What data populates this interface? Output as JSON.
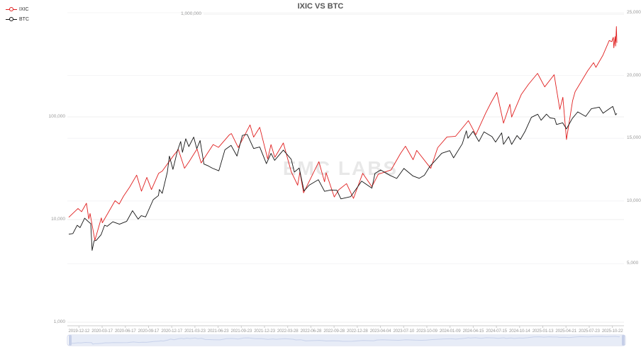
{
  "title": "IXIC VS BTC",
  "watermark": "EMC LABS",
  "legend": {
    "items": [
      {
        "label": "IXIC",
        "color": "#e01f1f"
      },
      {
        "label": "BTC",
        "color": "#141414"
      }
    ]
  },
  "colors": {
    "ixic_line": "#e01f1f",
    "btc_line": "#141414",
    "grid_line": "#efefef",
    "axis_line": "#cccccc",
    "axis_text": "#999999",
    "slider_border": "#d3d9ec",
    "slider_fill": "rgba(135,163,217,0.18)",
    "slider_shadow": "#d7ddef",
    "slider_handle": "#c6cfe8"
  },
  "left_axis": {
    "scale": "log",
    "labels": [
      {
        "text": "1,000,000",
        "value": 1000000
      },
      {
        "text": "100,000",
        "value": 100000
      },
      {
        "text": "10,000",
        "value": 10000
      },
      {
        "text": "1,000",
        "value": 1000
      }
    ]
  },
  "right_axis": {
    "scale": "linear",
    "labels": [
      {
        "text": "25,000",
        "value": 25000
      },
      {
        "text": "20,000",
        "value": 20000
      },
      {
        "text": "15,000",
        "value": 15000
      },
      {
        "text": "10,000",
        "value": 10000
      },
      {
        "text": "5,000",
        "value": 5000
      }
    ]
  },
  "x_axis": {
    "labels": [
      "2019-12-12",
      "2020-03-17",
      "2020-06-17",
      "2020-09-17",
      "2020-12-17",
      "2021-03-23",
      "2021-06-23",
      "2021-09-23",
      "2021-12-23",
      "2022-03-28",
      "2022-06-28",
      "2022-09-28",
      "2022-12-28",
      "2023-04-04",
      "2023-07-10",
      "2023-10-09",
      "2024-01-09",
      "2024-04-15",
      "2024-07-15",
      "2024-10-14",
      "2025-01-13",
      "2025-04-21",
      "2025-07-23",
      "2025-10-22"
    ]
  },
  "chart_data": {
    "type": "line",
    "title": "IXIC VS BTC",
    "x_range": [
      "2019-12-12",
      "2025-10-22"
    ],
    "left_axis_range": [
      1000,
      1000000
    ],
    "right_axis_range": [
      0,
      25000
    ],
    "grid": true,
    "legend_position": "top-left",
    "series": [
      {
        "name": "IXIC",
        "axis": "right",
        "color": "#e01f1f",
        "points": [
          [
            "2019-12-12",
            8700
          ],
          [
            "2020-01-17",
            9400
          ],
          [
            "2020-01-31",
            9150
          ],
          [
            "2020-02-19",
            9820
          ],
          [
            "2020-02-28",
            8570
          ],
          [
            "2020-03-04",
            9000
          ],
          [
            "2020-03-23",
            6860
          ],
          [
            "2020-04-17",
            8650
          ],
          [
            "2020-04-21",
            8260
          ],
          [
            "2020-05-12",
            9000
          ],
          [
            "2020-06-10",
            10020
          ],
          [
            "2020-06-26",
            9760
          ],
          [
            "2020-07-13",
            10390
          ],
          [
            "2020-08-06",
            11110
          ],
          [
            "2020-09-02",
            12060
          ],
          [
            "2020-09-21",
            10780
          ],
          [
            "2020-10-12",
            11880
          ],
          [
            "2020-10-30",
            10910
          ],
          [
            "2020-11-27",
            12200
          ],
          [
            "2020-12-11",
            12380
          ],
          [
            "2021-01-25",
            13640
          ],
          [
            "2021-02-12",
            14100
          ],
          [
            "2021-03-08",
            12610
          ],
          [
            "2021-03-26",
            13140
          ],
          [
            "2021-04-26",
            14140
          ],
          [
            "2021-05-12",
            13030
          ],
          [
            "2021-06-28",
            14500
          ],
          [
            "2021-07-19",
            14270
          ],
          [
            "2021-08-30",
            15270
          ],
          [
            "2021-09-07",
            15370
          ],
          [
            "2021-10-04",
            14260
          ],
          [
            "2021-11-19",
            16060
          ],
          [
            "2021-12-03",
            15090
          ],
          [
            "2021-12-27",
            15870
          ],
          [
            "2022-01-27",
            13350
          ],
          [
            "2022-02-09",
            14490
          ],
          [
            "2022-02-24",
            13480
          ],
          [
            "2022-03-29",
            14620
          ],
          [
            "2022-04-29",
            12330
          ],
          [
            "2022-05-24",
            11260
          ],
          [
            "2022-06-02",
            12320
          ],
          [
            "2022-06-16",
            10650
          ],
          [
            "2022-08-15",
            13130
          ],
          [
            "2022-09-06",
            11530
          ],
          [
            "2022-09-12",
            12250
          ],
          [
            "2022-10-14",
            10320
          ],
          [
            "2022-11-01",
            10900
          ],
          [
            "2022-12-01",
            11380
          ],
          [
            "2022-12-28",
            10210
          ],
          [
            "2023-02-02",
            12200
          ],
          [
            "2023-03-10",
            11140
          ],
          [
            "2023-04-04",
            12130
          ],
          [
            "2023-05-24",
            12480
          ],
          [
            "2023-06-30",
            13790
          ],
          [
            "2023-07-19",
            14360
          ],
          [
            "2023-08-18",
            13290
          ],
          [
            "2023-09-01",
            14030
          ],
          [
            "2023-10-26",
            12600
          ],
          [
            "2023-11-22",
            14250
          ],
          [
            "2023-12-28",
            15100
          ],
          [
            "2024-01-31",
            15160
          ],
          [
            "2024-03-21",
            16400
          ],
          [
            "2024-04-19",
            15280
          ],
          [
            "2024-05-28",
            17020
          ],
          [
            "2024-06-18",
            17860
          ],
          [
            "2024-07-10",
            18650
          ],
          [
            "2024-08-05",
            16200
          ],
          [
            "2024-08-30",
            17710
          ],
          [
            "2024-09-06",
            16690
          ],
          [
            "2024-10-14",
            18500
          ],
          [
            "2024-11-11",
            19300
          ],
          [
            "2024-12-16",
            20170
          ],
          [
            "2025-01-13",
            19090
          ],
          [
            "2025-02-19",
            20060
          ],
          [
            "2025-03-13",
            17300
          ],
          [
            "2025-03-25",
            18270
          ],
          [
            "2025-04-08",
            14900
          ],
          [
            "2025-05-02",
            17980
          ],
          [
            "2025-05-12",
            18710
          ],
          [
            "2025-06-30",
            20370
          ],
          [
            "2025-07-23",
            21020
          ],
          [
            "2025-08-01",
            20650
          ],
          [
            "2025-08-28",
            21590
          ],
          [
            "2025-09-22",
            22790
          ],
          [
            "2025-10-02",
            22700
          ],
          [
            "2025-10-08",
            23040
          ],
          [
            "2025-10-10",
            22200
          ],
          [
            "2025-10-15",
            23100
          ],
          [
            "2025-10-17",
            22350
          ],
          [
            "2025-10-20",
            23900
          ],
          [
            "2025-10-22",
            22600
          ]
        ]
      },
      {
        "name": "BTC",
        "axis": "left",
        "color": "#141414",
        "points": [
          [
            "2019-12-12",
            7200
          ],
          [
            "2019-12-28",
            7300
          ],
          [
            "2020-01-14",
            8800
          ],
          [
            "2020-01-25",
            8350
          ],
          [
            "2020-02-12",
            10300
          ],
          [
            "2020-02-24",
            9650
          ],
          [
            "2020-03-07",
            9100
          ],
          [
            "2020-03-12",
            5000
          ],
          [
            "2020-03-20",
            6200
          ],
          [
            "2020-03-28",
            6250
          ],
          [
            "2020-04-16",
            7100
          ],
          [
            "2020-04-30",
            8800
          ],
          [
            "2020-05-10",
            8600
          ],
          [
            "2020-06-01",
            9500
          ],
          [
            "2020-06-27",
            9000
          ],
          [
            "2020-07-25",
            9600
          ],
          [
            "2020-08-17",
            12200
          ],
          [
            "2020-09-08",
            10100
          ],
          [
            "2020-09-20",
            10900
          ],
          [
            "2020-10-07",
            10600
          ],
          [
            "2020-11-06",
            15600
          ],
          [
            "2020-11-26",
            17100
          ],
          [
            "2020-11-30",
            19600
          ],
          [
            "2020-12-11",
            18000
          ],
          [
            "2020-12-31",
            29000
          ],
          [
            "2021-01-08",
            41500
          ],
          [
            "2021-01-22",
            30800
          ],
          [
            "2021-02-08",
            46400
          ],
          [
            "2021-02-21",
            57500
          ],
          [
            "2021-02-28",
            45100
          ],
          [
            "2021-03-13",
            61200
          ],
          [
            "2021-03-25",
            51300
          ],
          [
            "2021-04-13",
            63500
          ],
          [
            "2021-04-25",
            49000
          ],
          [
            "2021-05-08",
            58800
          ],
          [
            "2021-05-23",
            34700
          ],
          [
            "2021-06-08",
            33400
          ],
          [
            "2021-06-25",
            31600
          ],
          [
            "2021-07-20",
            29800
          ],
          [
            "2021-08-13",
            47800
          ],
          [
            "2021-09-06",
            52700
          ],
          [
            "2021-09-29",
            41500
          ],
          [
            "2021-10-20",
            66000
          ],
          [
            "2021-11-08",
            67500
          ],
          [
            "2021-12-03",
            49200
          ],
          [
            "2021-12-27",
            50800
          ],
          [
            "2022-01-22",
            35000
          ],
          [
            "2022-02-09",
            44100
          ],
          [
            "2022-02-23",
            37700
          ],
          [
            "2022-03-29",
            47500
          ],
          [
            "2022-04-29",
            38600
          ],
          [
            "2022-05-11",
            29000
          ],
          [
            "2022-05-30",
            31700
          ],
          [
            "2022-06-18",
            19000
          ],
          [
            "2022-07-08",
            21600
          ],
          [
            "2022-08-13",
            24400
          ],
          [
            "2022-09-06",
            18800
          ],
          [
            "2022-09-30",
            19400
          ],
          [
            "2022-10-24",
            19300
          ],
          [
            "2022-11-09",
            15900
          ],
          [
            "2022-12-17",
            16700
          ],
          [
            "2023-01-14",
            20900
          ],
          [
            "2023-01-29",
            23700
          ],
          [
            "2023-03-10",
            20200
          ],
          [
            "2023-03-22",
            28100
          ],
          [
            "2023-04-13",
            30400
          ],
          [
            "2023-05-20",
            26900
          ],
          [
            "2023-06-15",
            25100
          ],
          [
            "2023-07-13",
            31400
          ],
          [
            "2023-08-17",
            26600
          ],
          [
            "2023-09-11",
            25200
          ],
          [
            "2023-10-01",
            27000
          ],
          [
            "2023-10-23",
            33100
          ],
          [
            "2023-11-09",
            36700
          ],
          [
            "2023-12-08",
            44200
          ],
          [
            "2024-01-08",
            46900
          ],
          [
            "2024-01-23",
            39900
          ],
          [
            "2024-02-26",
            54500
          ],
          [
            "2024-03-13",
            73100
          ],
          [
            "2024-03-19",
            61900
          ],
          [
            "2024-04-08",
            72200
          ],
          [
            "2024-05-01",
            57500
          ],
          [
            "2024-05-21",
            71400
          ],
          [
            "2024-06-21",
            64200
          ],
          [
            "2024-07-05",
            56800
          ],
          [
            "2024-07-29",
            69900
          ],
          [
            "2024-08-05",
            54000
          ],
          [
            "2024-08-25",
            64200
          ],
          [
            "2024-09-06",
            53900
          ],
          [
            "2024-09-27",
            65800
          ],
          [
            "2024-10-10",
            60300
          ],
          [
            "2024-10-29",
            72700
          ],
          [
            "2024-11-22",
            98900
          ],
          [
            "2024-12-17",
            106100
          ],
          [
            "2024-12-30",
            92600
          ],
          [
            "2025-01-20",
            106200
          ],
          [
            "2025-02-03",
            97700
          ],
          [
            "2025-02-21",
            96200
          ],
          [
            "2025-02-28",
            84300
          ],
          [
            "2025-03-24",
            87500
          ],
          [
            "2025-04-08",
            76300
          ],
          [
            "2025-05-01",
            96500
          ],
          [
            "2025-05-22",
            111700
          ],
          [
            "2025-06-22",
            101000
          ],
          [
            "2025-07-14",
            119800
          ],
          [
            "2025-08-14",
            124400
          ],
          [
            "2025-08-29",
            108400
          ],
          [
            "2025-09-18",
            117500
          ],
          [
            "2025-10-06",
            126200
          ],
          [
            "2025-10-17",
            104600
          ],
          [
            "2025-10-22",
            108000
          ]
        ]
      }
    ]
  }
}
